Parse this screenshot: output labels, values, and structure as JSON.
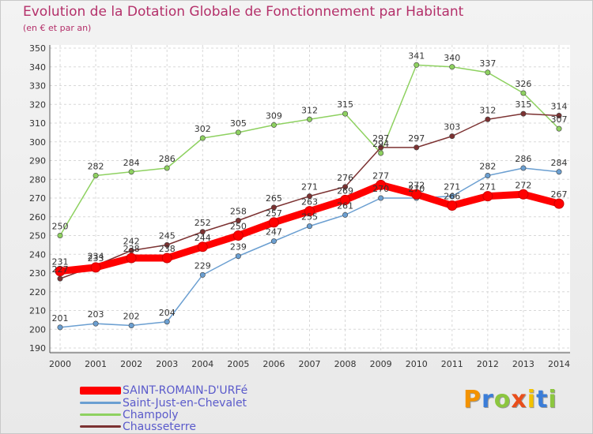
{
  "title": "Evolution de la Dotation Globale de Fonctionnement par Habitant",
  "subtitle": "(en € et par an)",
  "logo": "Proxiti",
  "colors": {
    "title": "#b4306a",
    "legend_text": "#5a5acb"
  },
  "chart_data": {
    "type": "line",
    "title": "Evolution de la Dotation Globale de Fonctionnement par Habitant",
    "subtitle": "(en € et par an)",
    "ylim": [
      190,
      350
    ],
    "yticks": [
      190,
      200,
      210,
      220,
      230,
      240,
      250,
      260,
      270,
      280,
      290,
      300,
      310,
      320,
      330,
      340,
      350
    ],
    "x": [
      "2000",
      "2001",
      "2002",
      "2003",
      "2004",
      "2005",
      "2006",
      "2007",
      "2008",
      "2009",
      "2010",
      "2011",
      "2012",
      "2013",
      "2014"
    ],
    "grid": true,
    "legend_position": "bottom-left",
    "series": [
      {
        "name": "SAINT-ROMAIN-D'URFé",
        "color": "#ff0000",
        "values": [
          231,
          233,
          238,
          238,
          244,
          250,
          257,
          263,
          269,
          277,
          272,
          266,
          271,
          272,
          267
        ]
      },
      {
        "name": "Saint-Just-en-Chevalet",
        "color": "#6b9fd1",
        "values": [
          201,
          203,
          202,
          204,
          229,
          239,
          247,
          255,
          261,
          270,
          270,
          271,
          282,
          286,
          284
        ]
      },
      {
        "name": "Champoly",
        "color": "#8ed160",
        "values": [
          250,
          282,
          284,
          286,
          302,
          305,
          309,
          312,
          315,
          294,
          341,
          340,
          337,
          326,
          307
        ]
      },
      {
        "name": "Chausseterre",
        "color": "#7c3232",
        "values": [
          227,
          234,
          242,
          245,
          252,
          258,
          265,
          271,
          276,
          297,
          297,
          303,
          312,
          315,
          314
        ]
      }
    ]
  }
}
